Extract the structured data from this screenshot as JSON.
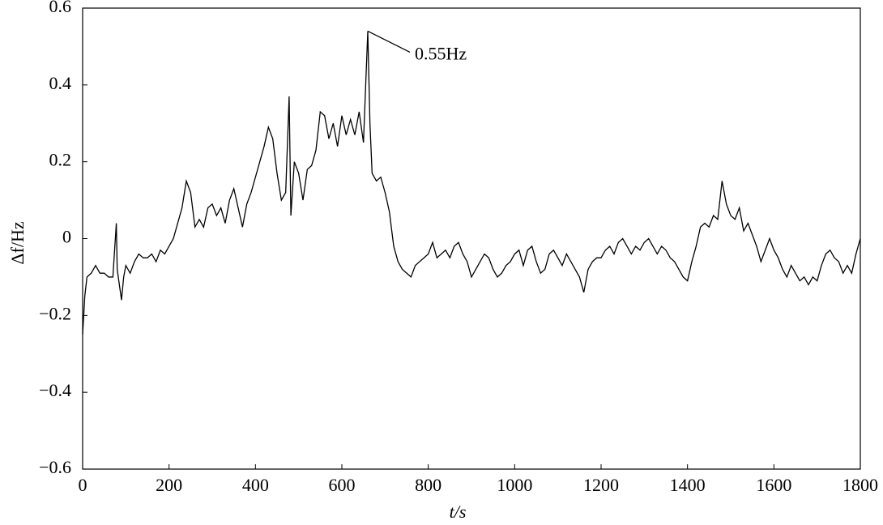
{
  "chart_data": {
    "type": "line",
    "xlabel": "t/s",
    "ylabel": "Δf/Hz",
    "annotation": "0.55Hz",
    "color": "#000000",
    "xlim": [
      0,
      1800
    ],
    "xticks": [
      0,
      200,
      400,
      600,
      800,
      1000,
      1200,
      1400,
      1600,
      1800
    ],
    "ylim": [
      -0.6,
      0.6
    ],
    "yticks": [
      0.6,
      0.4,
      0.2,
      0,
      {
        "value": -0.2,
        "label": "−0.2"
      },
      {
        "value": -0.4,
        "label": "−0.4"
      },
      {
        "value": -0.6,
        "label": "−0.6"
      }
    ],
    "x": [
      0,
      5,
      10,
      20,
      30,
      40,
      50,
      60,
      70,
      78,
      80,
      85,
      90,
      95,
      100,
      110,
      120,
      130,
      140,
      150,
      160,
      170,
      180,
      190,
      200,
      210,
      220,
      230,
      240,
      250,
      260,
      270,
      280,
      290,
      300,
      310,
      320,
      330,
      340,
      350,
      360,
      370,
      380,
      390,
      400,
      410,
      420,
      430,
      440,
      450,
      460,
      470,
      478,
      482,
      490,
      500,
      510,
      520,
      530,
      540,
      550,
      560,
      570,
      580,
      590,
      600,
      610,
      620,
      630,
      640,
      650,
      660,
      665,
      670,
      680,
      690,
      700,
      710,
      720,
      730,
      740,
      750,
      760,
      770,
      780,
      790,
      800,
      810,
      820,
      830,
      840,
      850,
      860,
      870,
      880,
      890,
      900,
      910,
      920,
      930,
      940,
      950,
      960,
      970,
      980,
      990,
      1000,
      1010,
      1020,
      1030,
      1040,
      1050,
      1060,
      1070,
      1080,
      1090,
      1100,
      1110,
      1120,
      1130,
      1140,
      1150,
      1160,
      1170,
      1180,
      1190,
      1200,
      1210,
      1220,
      1230,
      1240,
      1250,
      1260,
      1270,
      1280,
      1290,
      1300,
      1310,
      1320,
      1330,
      1340,
      1350,
      1360,
      1370,
      1380,
      1390,
      1400,
      1410,
      1420,
      1430,
      1440,
      1450,
      1460,
      1470,
      1480,
      1490,
      1500,
      1510,
      1520,
      1530,
      1540,
      1550,
      1560,
      1570,
      1580,
      1590,
      1600,
      1610,
      1620,
      1630,
      1640,
      1650,
      1660,
      1670,
      1680,
      1690,
      1700,
      1710,
      1720,
      1730,
      1740,
      1750,
      1760,
      1770,
      1780,
      1790,
      1800
    ],
    "values": [
      -0.25,
      -0.15,
      -0.1,
      -0.09,
      -0.07,
      -0.09,
      -0.09,
      -0.1,
      -0.1,
      0.04,
      -0.08,
      -0.12,
      -0.16,
      -0.1,
      -0.07,
      -0.09,
      -0.06,
      -0.04,
      -0.05,
      -0.05,
      -0.04,
      -0.06,
      -0.03,
      -0.04,
      -0.02,
      0.0,
      0.04,
      0.08,
      0.15,
      0.12,
      0.03,
      0.05,
      0.03,
      0.08,
      0.09,
      0.06,
      0.08,
      0.04,
      0.1,
      0.13,
      0.08,
      0.03,
      0.09,
      0.12,
      0.16,
      0.2,
      0.24,
      0.29,
      0.26,
      0.17,
      0.1,
      0.12,
      0.37,
      0.06,
      0.2,
      0.17,
      0.1,
      0.18,
      0.19,
      0.23,
      0.33,
      0.32,
      0.26,
      0.3,
      0.24,
      0.32,
      0.27,
      0.31,
      0.27,
      0.33,
      0.25,
      0.54,
      0.3,
      0.17,
      0.15,
      0.16,
      0.12,
      0.07,
      -0.02,
      -0.06,
      -0.08,
      -0.09,
      -0.1,
      -0.07,
      -0.06,
      -0.05,
      -0.04,
      -0.01,
      -0.05,
      -0.04,
      -0.03,
      -0.05,
      -0.02,
      -0.01,
      -0.04,
      -0.06,
      -0.1,
      -0.08,
      -0.06,
      -0.04,
      -0.05,
      -0.08,
      -0.1,
      -0.09,
      -0.07,
      -0.06,
      -0.04,
      -0.03,
      -0.07,
      -0.03,
      -0.02,
      -0.06,
      -0.09,
      -0.08,
      -0.04,
      -0.03,
      -0.05,
      -0.07,
      -0.04,
      -0.06,
      -0.08,
      -0.1,
      -0.14,
      -0.08,
      -0.06,
      -0.05,
      -0.05,
      -0.03,
      -0.02,
      -0.04,
      -0.01,
      0.0,
      -0.02,
      -0.04,
      -0.02,
      -0.03,
      -0.01,
      0.0,
      -0.02,
      -0.04,
      -0.02,
      -0.03,
      -0.05,
      -0.06,
      -0.08,
      -0.1,
      -0.11,
      -0.06,
      -0.02,
      0.03,
      0.04,
      0.03,
      0.06,
      0.05,
      0.15,
      0.09,
      0.06,
      0.05,
      0.08,
      0.02,
      0.04,
      0.01,
      -0.02,
      -0.06,
      -0.03,
      0.0,
      -0.03,
      -0.05,
      -0.08,
      -0.1,
      -0.07,
      -0.09,
      -0.11,
      -0.1,
      -0.12,
      -0.1,
      -0.11,
      -0.07,
      -0.04,
      -0.03,
      -0.05,
      -0.06,
      -0.09,
      -0.07,
      -0.09,
      -0.04,
      0.0
    ]
  }
}
